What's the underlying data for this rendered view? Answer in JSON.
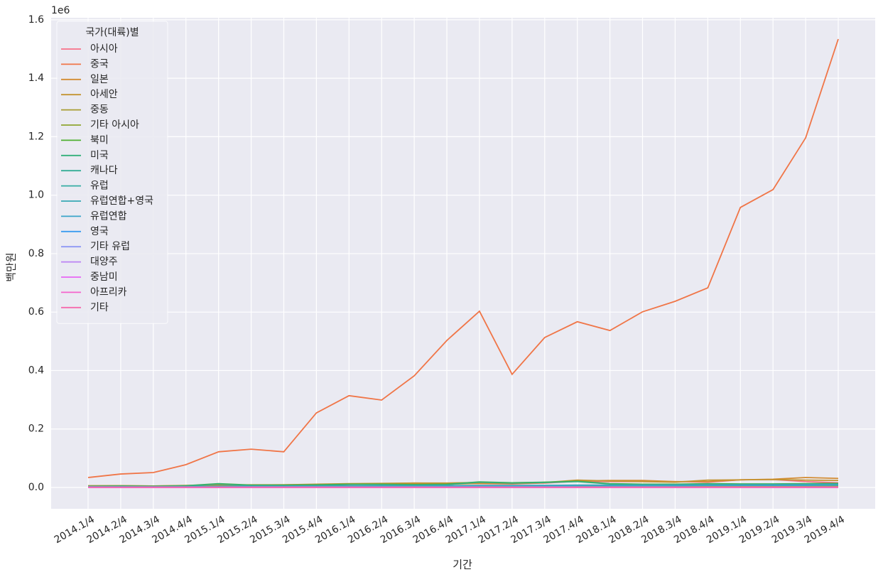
{
  "chart_data": {
    "type": "line",
    "x_label": "기간",
    "y_label": "백만원",
    "y_offset_text": "1e6",
    "legend_title": "국가(대륙)별",
    "categories": [
      "2014.1/4",
      "2014.2/4",
      "2014.3/4",
      "2014.4/4",
      "2015.1/4",
      "2015.2/4",
      "2015.3/4",
      "2015.4/4",
      "2016.1/4",
      "2016.2/4",
      "2016.3/4",
      "2016.4/4",
      "2017.1/4",
      "2017.2/4",
      "2017.3/4",
      "2017.4/4",
      "2018.1/4",
      "2018.2/4",
      "2018.3/4",
      "2018.4/4",
      "2019.1/4",
      "2019.2/4",
      "2019.3/4",
      "2019.4/4"
    ],
    "ylim": [
      -0.073,
      1.607
    ],
    "yticks": [
      {
        "value": 0,
        "label": "0.0"
      },
      0.2,
      0.4,
      0.6,
      0.8,
      {
        "value": 1,
        "label": "1.0"
      },
      1.2,
      1.4,
      1.6
    ],
    "grid": true,
    "legend": "upper left",
    "series": [
      {
        "name": "아시아",
        "color": "#f77189",
        "values": [
          0.004,
          0.005,
          0.004,
          0.005,
          0.006,
          0.006,
          0.007,
          0.008,
          0.01,
          0.012,
          0.015,
          0.014,
          0.013,
          0.012,
          0.015,
          0.021,
          0.02,
          0.02,
          0.02,
          0.018,
          0.026,
          0.027,
          0.02,
          0.016
        ]
      },
      {
        "name": "중국",
        "color": "#f07547",
        "values": [
          0.034,
          0.046,
          0.051,
          0.078,
          0.122,
          0.131,
          0.122,
          0.255,
          0.314,
          0.299,
          0.382,
          0.503,
          0.603,
          0.387,
          0.513,
          0.567,
          0.537,
          0.601,
          0.637,
          0.683,
          0.958,
          1.019,
          1.196,
          1.534
        ]
      },
      {
        "name": "일본",
        "color": "#d38c32",
        "values": [
          0.005,
          0.006,
          0.005,
          0.006,
          0.007,
          0.008,
          0.009,
          0.01,
          0.012,
          0.013,
          0.012,
          0.011,
          0.014,
          0.013,
          0.016,
          0.022,
          0.024,
          0.024,
          0.02,
          0.02,
          0.026,
          0.028,
          0.034,
          0.031
        ]
      },
      {
        "name": "아세안",
        "color": "#c39432",
        "values": [
          0.006,
          0.006,
          0.005,
          0.007,
          0.008,
          0.009,
          0.009,
          0.011,
          0.013,
          0.014,
          0.015,
          0.015,
          0.017,
          0.016,
          0.017,
          0.025,
          0.022,
          0.02,
          0.018,
          0.025,
          0.026,
          0.027,
          0.025,
          0.024
        ]
      },
      {
        "name": "중동",
        "color": "#a89d32",
        "values": [
          0.001,
          0.001,
          0.001,
          0.001,
          0.001,
          0.001,
          0.001,
          0.002,
          0.002,
          0.002,
          0.002,
          0.002,
          0.002,
          0.002,
          0.002,
          0.003,
          0.003,
          0.003,
          0.003,
          0.003,
          0.003,
          0.003,
          0.003,
          0.003
        ]
      },
      {
        "name": "기타 아시아",
        "color": "#8ea531",
        "values": [
          0.002,
          0.002,
          0.002,
          0.002,
          0.003,
          0.003,
          0.003,
          0.003,
          0.004,
          0.004,
          0.004,
          0.004,
          0.005,
          0.005,
          0.005,
          0.006,
          0.006,
          0.006,
          0.006,
          0.006,
          0.007,
          0.007,
          0.007,
          0.007
        ]
      },
      {
        "name": "북미",
        "color": "#4fb031",
        "values": [
          0.004,
          0.005,
          0.004,
          0.006,
          0.013,
          0.008,
          0.008,
          0.009,
          0.011,
          0.011,
          0.01,
          0.011,
          0.019,
          0.016,
          0.018,
          0.021,
          0.013,
          0.011,
          0.011,
          0.013,
          0.012,
          0.012,
          0.013,
          0.014
        ]
      },
      {
        "name": "미국",
        "color": "#33b07a",
        "values": [
          0.003,
          0.004,
          0.003,
          0.005,
          0.012,
          0.007,
          0.007,
          0.008,
          0.01,
          0.01,
          0.009,
          0.01,
          0.018,
          0.015,
          0.017,
          0.02,
          0.012,
          0.01,
          0.01,
          0.012,
          0.011,
          0.011,
          0.012,
          0.013
        ]
      },
      {
        "name": "캐나다",
        "color": "#35ad96",
        "values": [
          0.001,
          0.001,
          0.001,
          0.001,
          0.001,
          0.001,
          0.001,
          0.001,
          0.001,
          0.001,
          0.001,
          0.001,
          0.001,
          0.001,
          0.001,
          0.001,
          0.001,
          0.001,
          0.001,
          0.001,
          0.001,
          0.001,
          0.001,
          0.001
        ]
      },
      {
        "name": "유럽",
        "color": "#36ada4",
        "values": [
          0.003,
          0.003,
          0.003,
          0.003,
          0.004,
          0.004,
          0.004,
          0.005,
          0.005,
          0.006,
          0.006,
          0.006,
          0.007,
          0.007,
          0.007,
          0.008,
          0.008,
          0.008,
          0.008,
          0.009,
          0.009,
          0.009,
          0.01,
          0.01
        ]
      },
      {
        "name": "유럽연합+영국",
        "color": "#38a9b5",
        "values": [
          0.003,
          0.003,
          0.003,
          0.003,
          0.004,
          0.004,
          0.004,
          0.004,
          0.005,
          0.005,
          0.005,
          0.006,
          0.006,
          0.006,
          0.007,
          0.007,
          0.007,
          0.007,
          0.008,
          0.008,
          0.008,
          0.009,
          0.009,
          0.009
        ]
      },
      {
        "name": "유럽연합",
        "color": "#3aa5c9",
        "values": [
          0.002,
          0.002,
          0.002,
          0.002,
          0.003,
          0.003,
          0.003,
          0.003,
          0.004,
          0.004,
          0.004,
          0.005,
          0.005,
          0.005,
          0.005,
          0.006,
          0.006,
          0.006,
          0.006,
          0.007,
          0.007,
          0.007,
          0.007,
          0.008
        ]
      },
      {
        "name": "영국",
        "color": "#3b9cf0",
        "values": [
          0.001,
          0.001,
          0.001,
          0.001,
          0.001,
          0.001,
          0.001,
          0.001,
          0.001,
          0.001,
          0.001,
          0.001,
          0.001,
          0.001,
          0.001,
          0.001,
          0.001,
          0.001,
          0.001,
          0.001,
          0.001,
          0.001,
          0.001,
          0.001
        ]
      },
      {
        "name": "기타 유럽",
        "color": "#8e97f4",
        "values": [
          0.0,
          0.0,
          0.0,
          0.0,
          0.0,
          0.0,
          0.0,
          0.001,
          0.001,
          0.001,
          0.001,
          0.001,
          0.001,
          0.001,
          0.001,
          0.001,
          0.001,
          0.001,
          0.001,
          0.001,
          0.001,
          0.001,
          0.001,
          0.001
        ]
      },
      {
        "name": "대양주",
        "color": "#bb83f4",
        "values": [
          0.001,
          0.001,
          0.001,
          0.001,
          0.001,
          0.001,
          0.001,
          0.001,
          0.001,
          0.001,
          0.001,
          0.001,
          0.001,
          0.001,
          0.001,
          0.001,
          0.001,
          0.001,
          0.001,
          0.001,
          0.001,
          0.001,
          0.001,
          0.001
        ]
      },
      {
        "name": "중남미",
        "color": "#e866f4",
        "values": [
          0.0,
          0.0,
          0.0,
          0.0,
          0.0,
          0.0,
          0.0,
          0.0,
          0.0,
          0.0,
          0.0,
          0.0,
          0.0,
          0.0,
          0.0,
          0.0,
          0.0,
          0.0,
          0.0,
          0.0,
          0.0,
          0.0,
          0.0,
          0.0
        ]
      },
      {
        "name": "아프리카",
        "color": "#f565cc",
        "values": [
          0.0,
          0.0,
          0.0,
          0.0,
          0.0,
          0.0,
          0.0,
          0.0,
          0.0,
          0.0,
          0.0,
          0.0,
          0.0,
          0.0,
          0.0,
          0.0,
          0.0,
          0.0,
          0.0,
          0.0,
          0.0,
          0.0,
          0.0,
          0.0
        ]
      },
      {
        "name": "기타",
        "color": "#f66bad",
        "values": [
          0.001,
          0.001,
          0.001,
          0.001,
          0.001,
          0.001,
          0.001,
          0.001,
          0.001,
          0.001,
          0.001,
          0.001,
          0.001,
          0.001,
          0.001,
          0.001,
          0.001,
          0.001,
          0.001,
          0.001,
          0.001,
          0.001,
          0.001,
          0.001
        ]
      }
    ]
  }
}
